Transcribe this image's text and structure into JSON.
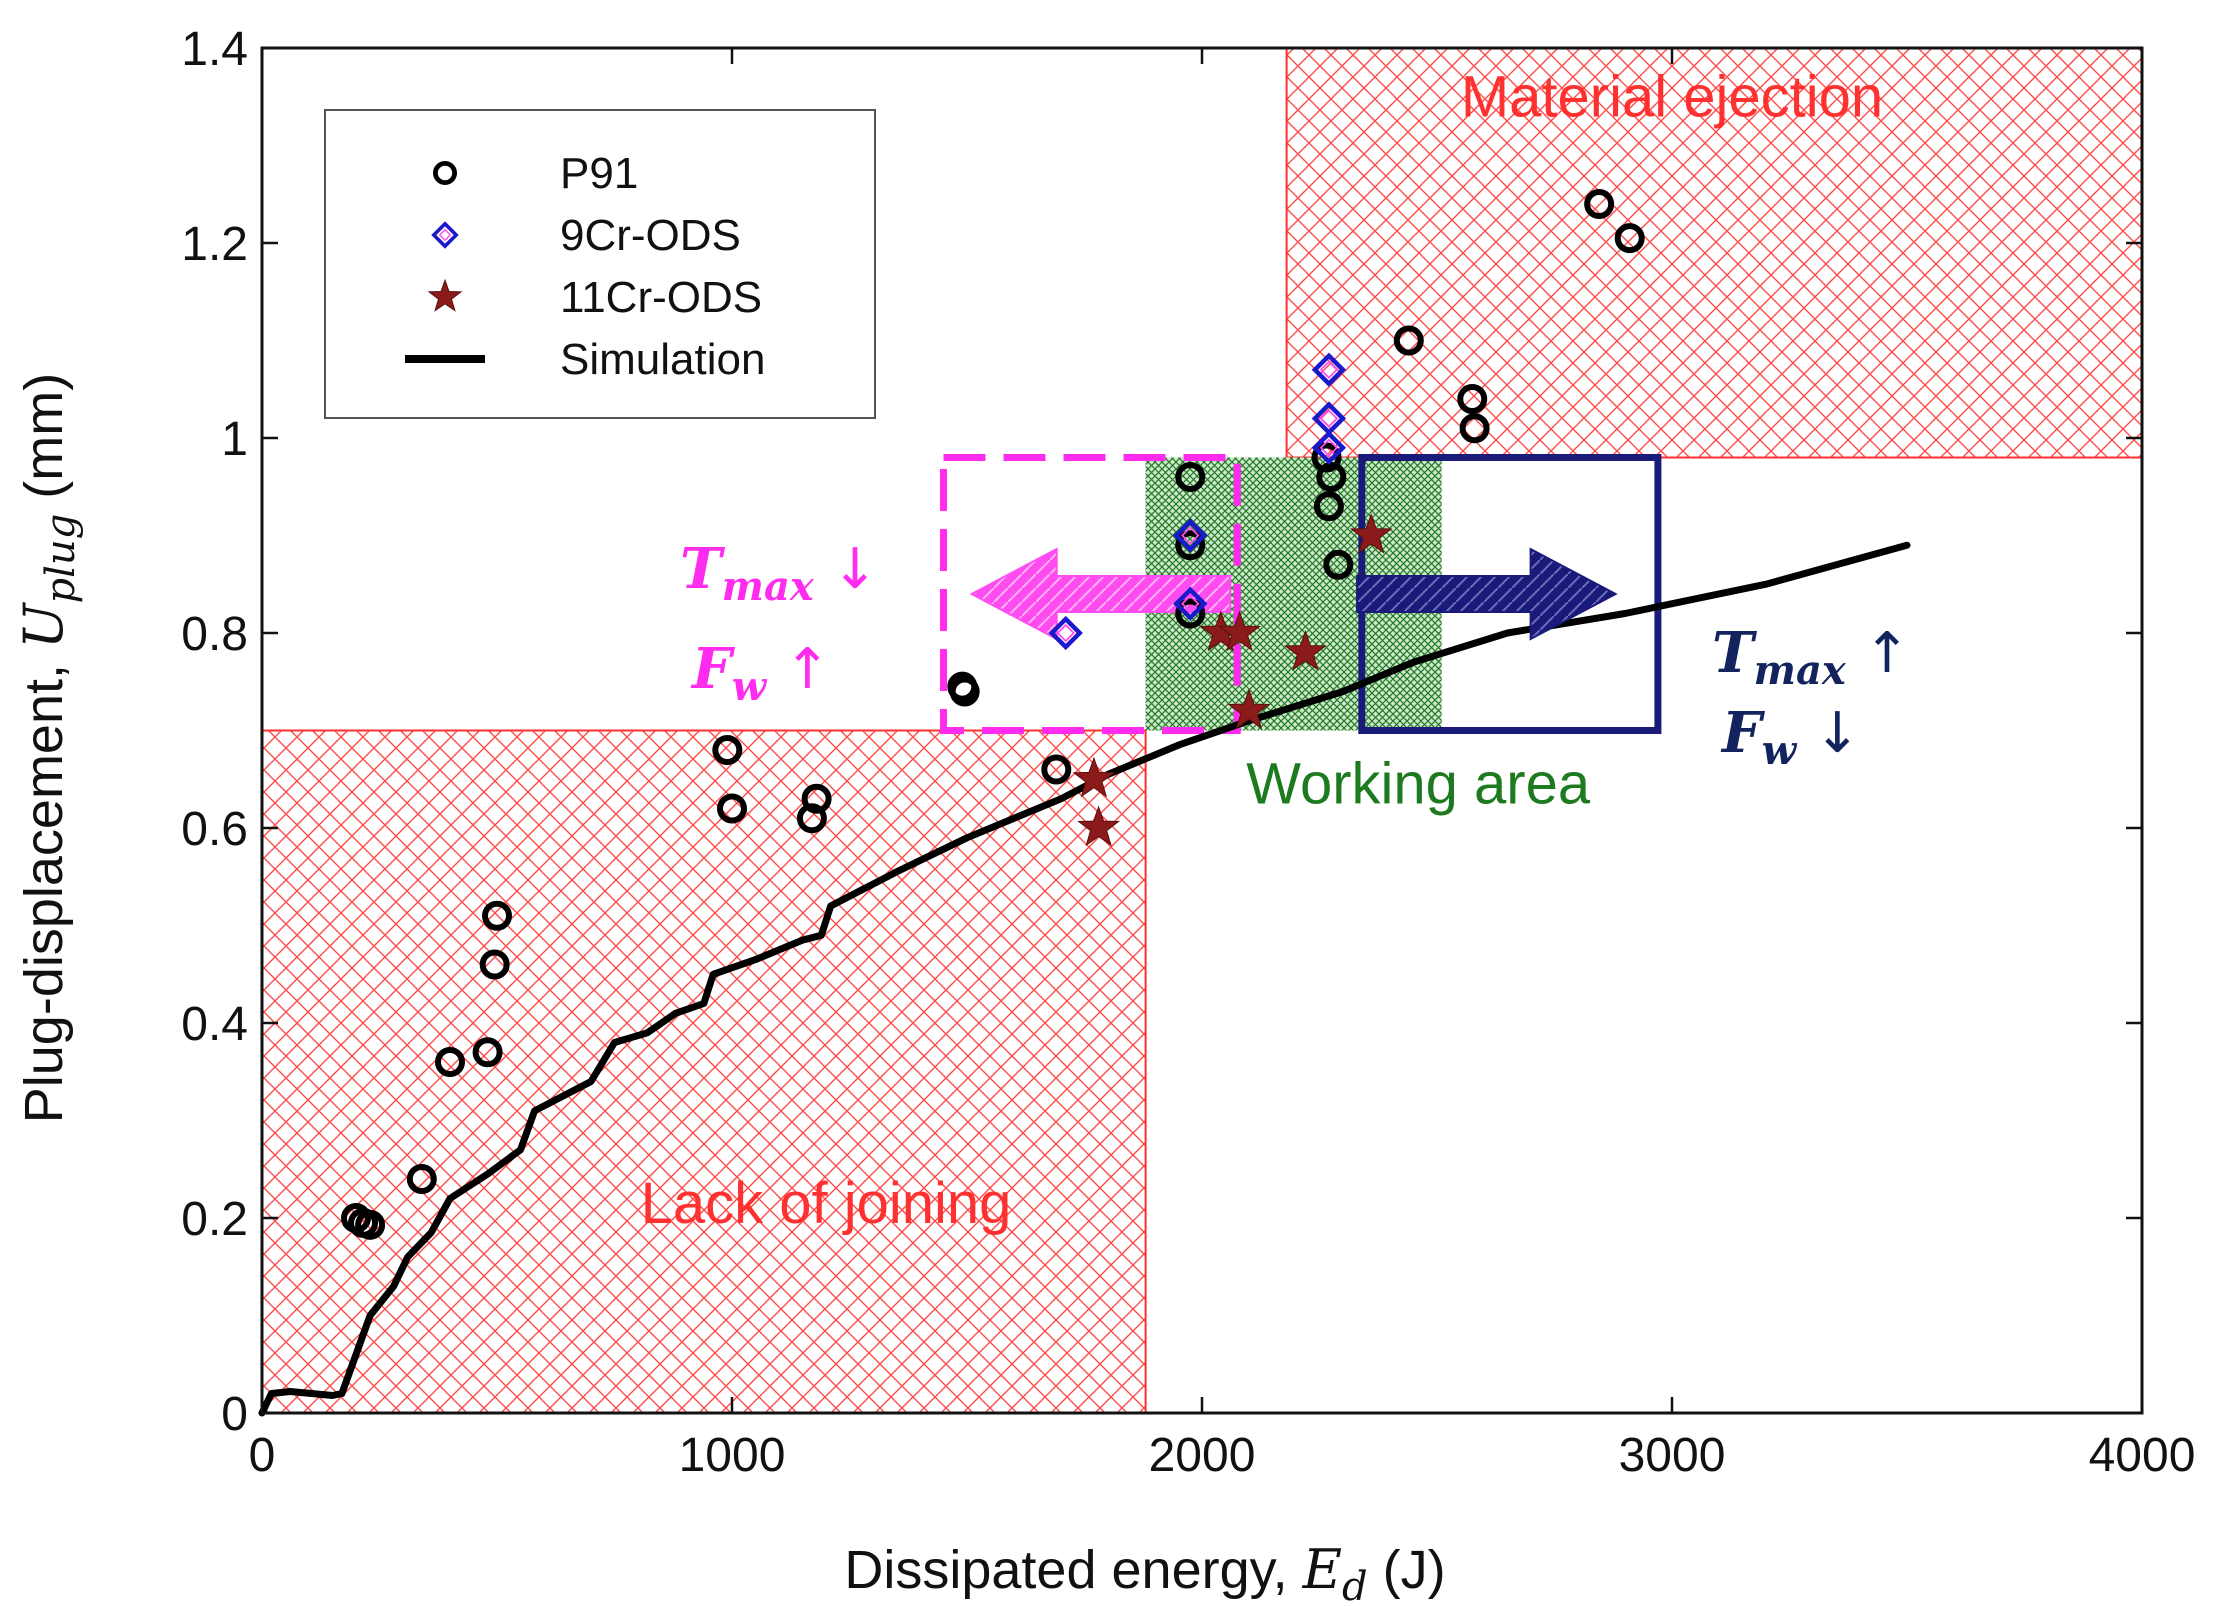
{
  "chart_data": {
    "type": "scatter",
    "title": "",
    "xlabel": "Dissipated energy, ",
    "xlabel_math": "E",
    "xlabel_math_sub": "d",
    "xlabel_unit": " (J)",
    "ylabel": "Plug-displacement, ",
    "ylabel_math": "U",
    "ylabel_math_sub": "plug",
    "ylabel_unit": " (mm)",
    "xlim": [
      0,
      4000
    ],
    "ylim": [
      0,
      1.4
    ],
    "xticks": [
      0,
      1000,
      2000,
      3000,
      4000
    ],
    "xtick_labels": [
      "0",
      "1000",
      "2000",
      "3000",
      "4000"
    ],
    "yticks": [
      0,
      0.2,
      0.4,
      0.6,
      0.8,
      1.0,
      1.2,
      1.4
    ],
    "ytick_labels": [
      "0",
      "0.2",
      "0.4",
      "0.6",
      "0.8",
      "1",
      "1.2",
      "1.4"
    ],
    "legend_position": "top-left",
    "series": [
      {
        "name": "P91",
        "marker": "circle",
        "color": "#000000",
        "points": [
          [
            200,
            0.2
          ],
          [
            215,
            0.195
          ],
          [
            230,
            0.193
          ],
          [
            340,
            0.24
          ],
          [
            400,
            0.36
          ],
          [
            480,
            0.37
          ],
          [
            495,
            0.46
          ],
          [
            500,
            0.51
          ],
          [
            990,
            0.68
          ],
          [
            1000,
            0.62
          ],
          [
            1170,
            0.61
          ],
          [
            1180,
            0.63
          ],
          [
            1490,
            0.745
          ],
          [
            1495,
            0.74
          ],
          [
            1690,
            0.66
          ],
          [
            1975,
            0.96
          ],
          [
            1975,
            0.89
          ],
          [
            1975,
            0.82
          ],
          [
            2265,
            0.98
          ],
          [
            2270,
            0.93
          ],
          [
            2275,
            0.96
          ],
          [
            2290,
            0.87
          ],
          [
            2440,
            1.1
          ],
          [
            2575,
            1.04
          ],
          [
            2580,
            1.01
          ],
          [
            2845,
            1.24
          ],
          [
            2910,
            1.205
          ]
        ]
      },
      {
        "name": "9Cr-ODS",
        "marker": "diamond",
        "color": "#1a1acc",
        "points": [
          [
            1710,
            0.8
          ],
          [
            1975,
            0.9
          ],
          [
            1975,
            0.83
          ],
          [
            2270,
            1.07
          ],
          [
            2270,
            1.02
          ],
          [
            2270,
            0.99
          ]
        ]
      },
      {
        "name": "11Cr-ODS",
        "marker": "star",
        "color": "#8b1a1a",
        "points": [
          [
            1770,
            0.65
          ],
          [
            1780,
            0.6
          ],
          [
            2040,
            0.8
          ],
          [
            2080,
            0.8
          ],
          [
            2100,
            0.72
          ],
          [
            2220,
            0.78
          ],
          [
            2360,
            0.9
          ]
        ]
      },
      {
        "name": "Simulation",
        "marker": "line",
        "color": "#000000",
        "points": [
          [
            0,
            0.0
          ],
          [
            20,
            0.02
          ],
          [
            60,
            0.022
          ],
          [
            150,
            0.018
          ],
          [
            170,
            0.02
          ],
          [
            230,
            0.1
          ],
          [
            280,
            0.13
          ],
          [
            310,
            0.16
          ],
          [
            360,
            0.185
          ],
          [
            400,
            0.22
          ],
          [
            480,
            0.245
          ],
          [
            550,
            0.27
          ],
          [
            580,
            0.31
          ],
          [
            700,
            0.34
          ],
          [
            750,
            0.38
          ],
          [
            820,
            0.39
          ],
          [
            880,
            0.41
          ],
          [
            940,
            0.42
          ],
          [
            960,
            0.45
          ],
          [
            1050,
            0.465
          ],
          [
            1150,
            0.485
          ],
          [
            1190,
            0.49
          ],
          [
            1210,
            0.52
          ],
          [
            1350,
            0.555
          ],
          [
            1500,
            0.59
          ],
          [
            1700,
            0.63
          ],
          [
            1800,
            0.655
          ],
          [
            1950,
            0.685
          ],
          [
            2100,
            0.71
          ],
          [
            2300,
            0.74
          ],
          [
            2450,
            0.77
          ],
          [
            2650,
            0.8
          ],
          [
            2900,
            0.82
          ],
          [
            3200,
            0.85
          ],
          [
            3500,
            0.89
          ]
        ]
      }
    ],
    "regions": [
      {
        "name": "Lack of joining",
        "x": [
          0,
          1880
        ],
        "y": [
          0,
          0.7
        ],
        "color": "#ff3030"
      },
      {
        "name": "Material ejection",
        "x": [
          2180,
          4000
        ],
        "y": [
          0.98,
          1.4
        ],
        "color": "#ff3030"
      },
      {
        "name": "Working area",
        "x": [
          1880,
          2510
        ],
        "y": [
          0.7,
          0.98
        ],
        "color": "#1f7a1f"
      }
    ],
    "annotations": [
      {
        "text": "Material ejection",
        "color": "#ff3030",
        "at": [
          3000,
          1.33
        ]
      },
      {
        "text": "Lack of joining",
        "color": "#ff3030",
        "at": [
          1200,
          0.195
        ]
      },
      {
        "text": "Working area",
        "color": "#1e7a1e",
        "at": [
          2460,
          0.625
        ]
      }
    ],
    "boxes": [
      {
        "name": "decrease",
        "x": [
          1450,
          2075
        ],
        "y": [
          0.7,
          0.98
        ],
        "color": "#ff2cf0",
        "style": "dashed"
      },
      {
        "name": "increase",
        "x": [
          2340,
          2970
        ],
        "y": [
          0.7,
          0.98
        ],
        "color": "#1a1a7a",
        "style": "solid"
      }
    ],
    "arrows": [
      {
        "name": "left-arrow",
        "from": [
          2060,
          0.84
        ],
        "to": [
          1510,
          0.84
        ],
        "color": "#ff4cf0"
      },
      {
        "name": "right-arrow",
        "from": [
          2330,
          0.84
        ],
        "to": [
          2880,
          0.84
        ],
        "color": "#1a1a7a"
      }
    ],
    "arrow_labels": {
      "left": {
        "color": "#ff2cf0",
        "line1_var": "T",
        "line1_sub": "max",
        "line1_sym": " ↓",
        "line2_var": "F",
        "line2_sub": "w",
        "line2_sym": " ↑"
      },
      "right": {
        "color": "#13235e",
        "line1_var": "T",
        "line1_sub": "max",
        "line1_sym": " ↑",
        "line2_var": "F",
        "line2_sub": "w",
        "line2_sym": " ↓"
      }
    }
  }
}
